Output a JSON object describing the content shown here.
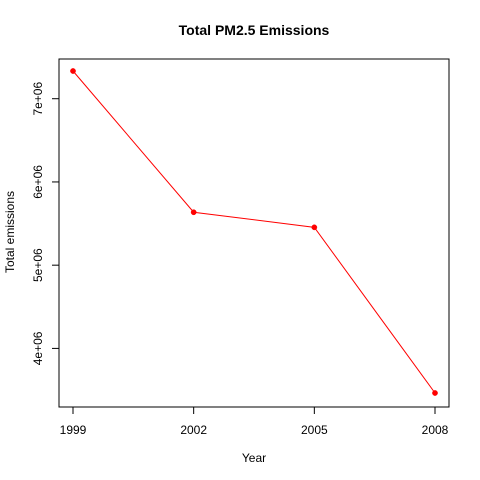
{
  "chart_data": {
    "type": "line",
    "title": "Total PM2.5 Emissions",
    "xlabel": "Year",
    "ylabel": "Total emissions",
    "x": [
      1999,
      2002,
      2005,
      2008
    ],
    "x_tick_labels": [
      "1999",
      "2002",
      "2005",
      "2008"
    ],
    "y_ticks": [
      4000000,
      5000000,
      6000000,
      7000000
    ],
    "y_tick_labels": [
      "4e+06",
      "5e+06",
      "6e+06",
      "7e+06"
    ],
    "xlim": [
      1999,
      2008
    ],
    "ylim": [
      3464206,
      7332967
    ],
    "grid": false,
    "series": [
      {
        "values": [
          7332967,
          5635780,
          5454703,
          3464206
        ],
        "color": "#ff0000",
        "marker": "filled-circle"
      }
    ],
    "colors": {
      "line": "#ff0000",
      "axis": "#000000",
      "background": "#ffffff"
    }
  }
}
